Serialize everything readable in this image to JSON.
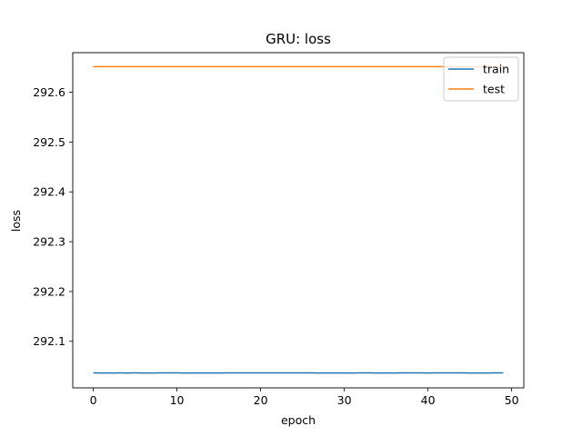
{
  "chart_data": {
    "type": "line",
    "title": "GRU: loss",
    "xlabel": "epoch",
    "ylabel": "loss",
    "xlim": [
      -2.45,
      51.45
    ],
    "ylim": [
      292.0065,
      292.6795
    ],
    "xticks": [
      0,
      10,
      20,
      30,
      40,
      50
    ],
    "yticks": [
      292.1,
      292.2,
      292.3,
      292.4,
      292.5,
      292.6
    ],
    "ytick_labels": [
      "292.1",
      "292.2",
      "292.3",
      "292.4",
      "292.5",
      "292.6"
    ],
    "grid": false,
    "legend": "top-right",
    "x": [
      0,
      1,
      2,
      3,
      4,
      5,
      6,
      7,
      8,
      9,
      10,
      11,
      12,
      13,
      14,
      15,
      16,
      17,
      18,
      19,
      20,
      21,
      22,
      23,
      24,
      25,
      26,
      27,
      28,
      29,
      30,
      31,
      32,
      33,
      34,
      35,
      36,
      37,
      38,
      39,
      40,
      41,
      42,
      43,
      44,
      45,
      46,
      47,
      48,
      49
    ],
    "series": [
      {
        "name": "train",
        "color": "#1f77b4",
        "values": [
          292.0365,
          292.0364,
          292.0364,
          292.0365,
          292.0364,
          292.0365,
          292.0364,
          292.0364,
          292.0366,
          292.0366,
          292.0365,
          292.0364,
          292.0364,
          292.0364,
          292.0364,
          292.0364,
          292.0365,
          292.0365,
          292.0366,
          292.0366,
          292.0365,
          292.0365,
          292.0366,
          292.0366,
          292.0366,
          292.0366,
          292.0365,
          292.0363,
          292.0364,
          292.0364,
          292.0363,
          292.0364,
          292.0365,
          292.0365,
          292.0364,
          292.0364,
          292.0364,
          292.0365,
          292.0365,
          292.0365,
          292.0364,
          292.0365,
          292.0365,
          292.0365,
          292.0365,
          292.0364,
          292.0364,
          292.0364,
          292.0365,
          292.0365
        ]
      },
      {
        "name": "test",
        "color": "#ff7f0e",
        "values": [
          292.6515,
          292.6515,
          292.6515,
          292.6515,
          292.6515,
          292.6515,
          292.6515,
          292.6515,
          292.6515,
          292.6515,
          292.6515,
          292.6515,
          292.6515,
          292.6515,
          292.6515,
          292.6515,
          292.6515,
          292.6515,
          292.6515,
          292.6515,
          292.6515,
          292.6515,
          292.6515,
          292.6515,
          292.6515,
          292.6515,
          292.6515,
          292.6515,
          292.6515,
          292.6515,
          292.6515,
          292.6515,
          292.6515,
          292.6515,
          292.6515,
          292.6515,
          292.6515,
          292.6515,
          292.6515,
          292.6515,
          292.6515,
          292.6515,
          292.6515,
          292.6515,
          292.6515,
          292.6515,
          292.6515,
          292.6515,
          292.6515,
          292.6515
        ]
      }
    ]
  }
}
